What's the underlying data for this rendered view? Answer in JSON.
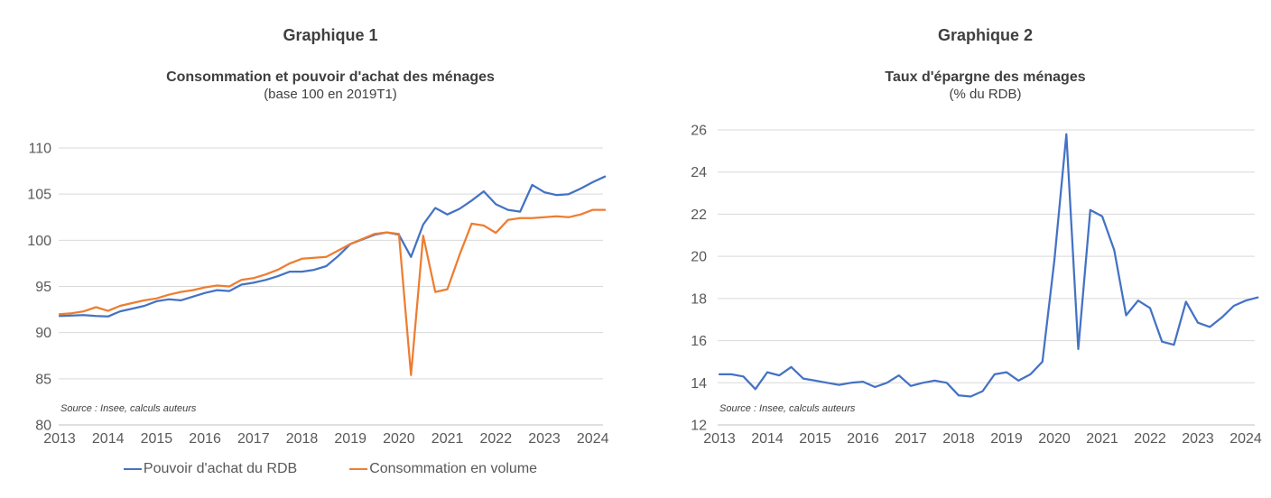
{
  "page": {
    "background": "#ffffff"
  },
  "charts": [
    {
      "heading": "Graphique 1",
      "title": "Consommation et pouvoir d'achat des ménages",
      "subtitle": "(base 100 en 2019T1)",
      "source": "Source : Insee, calculs auteurs"
    },
    {
      "heading": "Graphique 2",
      "title": "Taux d'épargne des ménages",
      "subtitle": "(% du RDB)",
      "source": "Source : Insee, calculs auteurs"
    }
  ],
  "chart_data": [
    {
      "type": "line",
      "title": "Consommation et pouvoir d'achat des ménages (base 100 en 2019T1)",
      "x_unit": "quarterly, 2013Q1 to 2024Q2",
      "x_start": 2013,
      "x_step": 0.25,
      "x_tick_labels": [
        "2013",
        "2014",
        "2015",
        "2016",
        "2017",
        "2018",
        "2019",
        "2020",
        "2021",
        "2022",
        "2023",
        "2024"
      ],
      "ylim": [
        80,
        110
      ],
      "y_tick_step": 5,
      "y_tick_labels": [
        "80",
        "85",
        "90",
        "95",
        "100",
        "105",
        "110"
      ],
      "grid": "horizontal",
      "legend_position": "bottom",
      "series": [
        {
          "name": "Pouvoir d'achat du RDB",
          "color": "#4472C4",
          "values": [
            91.8,
            91.85,
            91.9,
            91.8,
            91.75,
            92.3,
            92.6,
            92.9,
            93.4,
            93.6,
            93.5,
            93.9,
            94.3,
            94.6,
            94.5,
            95.2,
            95.4,
            95.7,
            96.1,
            96.6,
            96.6,
            96.8,
            97.2,
            98.3,
            99.6,
            100.1,
            100.6,
            100.85,
            100.6,
            98.2,
            101.7,
            103.5,
            102.8,
            103.4,
            104.3,
            105.3,
            103.9,
            103.3,
            103.1,
            106.0,
            105.2,
            104.9,
            105.0,
            105.6,
            106.3,
            106.9
          ]
        },
        {
          "name": "Consommation en volume",
          "color": "#ED7D31",
          "values": [
            92.0,
            92.1,
            92.3,
            92.75,
            92.35,
            92.9,
            93.2,
            93.5,
            93.7,
            94.1,
            94.4,
            94.6,
            94.9,
            95.1,
            95.0,
            95.7,
            95.9,
            96.3,
            96.8,
            97.5,
            98.0,
            98.1,
            98.2,
            98.9,
            99.6,
            100.15,
            100.7,
            100.85,
            100.7,
            85.4,
            100.5,
            94.4,
            94.7,
            98.4,
            101.8,
            101.6,
            100.8,
            102.2,
            102.4,
            102.4,
            102.5,
            102.6,
            102.5,
            102.8,
            103.3,
            103.3
          ]
        }
      ]
    },
    {
      "type": "line",
      "title": "Taux d'épargne des ménages (% du RDB)",
      "x_unit": "quarterly, 2013Q1 to 2024Q2",
      "x_start": 2013,
      "x_step": 0.25,
      "x_tick_labels": [
        "2013",
        "2014",
        "2015",
        "2016",
        "2017",
        "2018",
        "2019",
        "2020",
        "2021",
        "2022",
        "2023",
        "2024"
      ],
      "ylim": [
        12,
        26
      ],
      "y_tick_step": 2,
      "y_tick_labels": [
        "12",
        "14",
        "16",
        "18",
        "20",
        "22",
        "24",
        "26"
      ],
      "grid": "horizontal",
      "legend_position": "none",
      "series": [
        {
          "name": "Taux d'épargne des ménages",
          "color": "#4472C4",
          "values": [
            14.4,
            14.4,
            14.3,
            13.7,
            14.5,
            14.35,
            14.75,
            14.2,
            14.1,
            14.0,
            13.9,
            14.0,
            14.05,
            13.8,
            14.0,
            14.35,
            13.85,
            14.0,
            14.1,
            14.0,
            13.4,
            13.35,
            13.6,
            14.4,
            14.5,
            14.1,
            14.4,
            15.0,
            19.8,
            25.8,
            15.6,
            22.2,
            21.9,
            20.3,
            17.2,
            17.9,
            17.55,
            15.95,
            15.8,
            17.85,
            16.85,
            16.65,
            17.1,
            17.65,
            17.9,
            18.05
          ]
        }
      ]
    }
  ]
}
